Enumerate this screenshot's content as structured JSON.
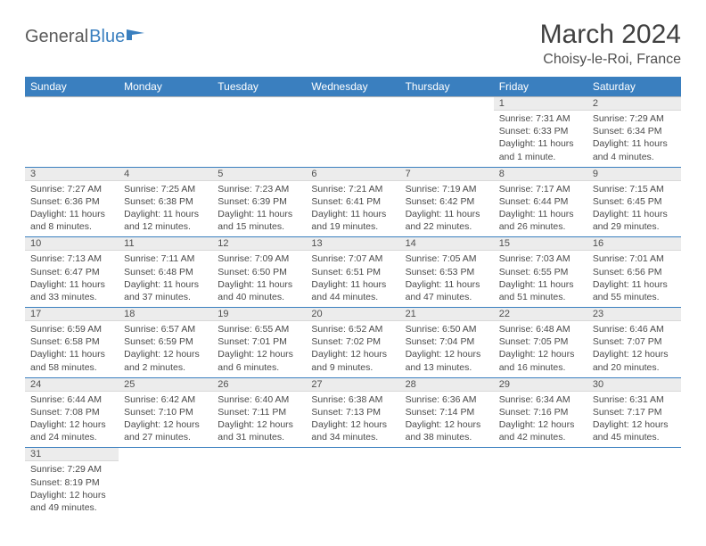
{
  "brand": {
    "part1": "General",
    "part2": "Blue"
  },
  "title": "March 2024",
  "location": "Choisy-le-Roi, France",
  "colors": {
    "header_bg": "#3a7fbf",
    "header_text": "#ffffff",
    "daynum_bg": "#ececec",
    "row_divider": "#b8b8b8",
    "row_bottom": "#3a7fbf",
    "text": "#4a4a4a"
  },
  "weekdays": [
    "Sunday",
    "Monday",
    "Tuesday",
    "Wednesday",
    "Thursday",
    "Friday",
    "Saturday"
  ],
  "layout": {
    "first_weekday_index": 5,
    "days_in_month": 31
  },
  "days": {
    "1": {
      "sunrise": "7:31 AM",
      "sunset": "6:33 PM",
      "daylight": "11 hours and 1 minute."
    },
    "2": {
      "sunrise": "7:29 AM",
      "sunset": "6:34 PM",
      "daylight": "11 hours and 4 minutes."
    },
    "3": {
      "sunrise": "7:27 AM",
      "sunset": "6:36 PM",
      "daylight": "11 hours and 8 minutes."
    },
    "4": {
      "sunrise": "7:25 AM",
      "sunset": "6:38 PM",
      "daylight": "11 hours and 12 minutes."
    },
    "5": {
      "sunrise": "7:23 AM",
      "sunset": "6:39 PM",
      "daylight": "11 hours and 15 minutes."
    },
    "6": {
      "sunrise": "7:21 AM",
      "sunset": "6:41 PM",
      "daylight": "11 hours and 19 minutes."
    },
    "7": {
      "sunrise": "7:19 AM",
      "sunset": "6:42 PM",
      "daylight": "11 hours and 22 minutes."
    },
    "8": {
      "sunrise": "7:17 AM",
      "sunset": "6:44 PM",
      "daylight": "11 hours and 26 minutes."
    },
    "9": {
      "sunrise": "7:15 AM",
      "sunset": "6:45 PM",
      "daylight": "11 hours and 29 minutes."
    },
    "10": {
      "sunrise": "7:13 AM",
      "sunset": "6:47 PM",
      "daylight": "11 hours and 33 minutes."
    },
    "11": {
      "sunrise": "7:11 AM",
      "sunset": "6:48 PM",
      "daylight": "11 hours and 37 minutes."
    },
    "12": {
      "sunrise": "7:09 AM",
      "sunset": "6:50 PM",
      "daylight": "11 hours and 40 minutes."
    },
    "13": {
      "sunrise": "7:07 AM",
      "sunset": "6:51 PM",
      "daylight": "11 hours and 44 minutes."
    },
    "14": {
      "sunrise": "7:05 AM",
      "sunset": "6:53 PM",
      "daylight": "11 hours and 47 minutes."
    },
    "15": {
      "sunrise": "7:03 AM",
      "sunset": "6:55 PM",
      "daylight": "11 hours and 51 minutes."
    },
    "16": {
      "sunrise": "7:01 AM",
      "sunset": "6:56 PM",
      "daylight": "11 hours and 55 minutes."
    },
    "17": {
      "sunrise": "6:59 AM",
      "sunset": "6:58 PM",
      "daylight": "11 hours and 58 minutes."
    },
    "18": {
      "sunrise": "6:57 AM",
      "sunset": "6:59 PM",
      "daylight": "12 hours and 2 minutes."
    },
    "19": {
      "sunrise": "6:55 AM",
      "sunset": "7:01 PM",
      "daylight": "12 hours and 6 minutes."
    },
    "20": {
      "sunrise": "6:52 AM",
      "sunset": "7:02 PM",
      "daylight": "12 hours and 9 minutes."
    },
    "21": {
      "sunrise": "6:50 AM",
      "sunset": "7:04 PM",
      "daylight": "12 hours and 13 minutes."
    },
    "22": {
      "sunrise": "6:48 AM",
      "sunset": "7:05 PM",
      "daylight": "12 hours and 16 minutes."
    },
    "23": {
      "sunrise": "6:46 AM",
      "sunset": "7:07 PM",
      "daylight": "12 hours and 20 minutes."
    },
    "24": {
      "sunrise": "6:44 AM",
      "sunset": "7:08 PM",
      "daylight": "12 hours and 24 minutes."
    },
    "25": {
      "sunrise": "6:42 AM",
      "sunset": "7:10 PM",
      "daylight": "12 hours and 27 minutes."
    },
    "26": {
      "sunrise": "6:40 AM",
      "sunset": "7:11 PM",
      "daylight": "12 hours and 31 minutes."
    },
    "27": {
      "sunrise": "6:38 AM",
      "sunset": "7:13 PM",
      "daylight": "12 hours and 34 minutes."
    },
    "28": {
      "sunrise": "6:36 AM",
      "sunset": "7:14 PM",
      "daylight": "12 hours and 38 minutes."
    },
    "29": {
      "sunrise": "6:34 AM",
      "sunset": "7:16 PM",
      "daylight": "12 hours and 42 minutes."
    },
    "30": {
      "sunrise": "6:31 AM",
      "sunset": "7:17 PM",
      "daylight": "12 hours and 45 minutes."
    },
    "31": {
      "sunrise": "7:29 AM",
      "sunset": "8:19 PM",
      "daylight": "12 hours and 49 minutes."
    }
  },
  "labels": {
    "sunrise": "Sunrise:",
    "sunset": "Sunset:",
    "daylight": "Daylight:"
  }
}
